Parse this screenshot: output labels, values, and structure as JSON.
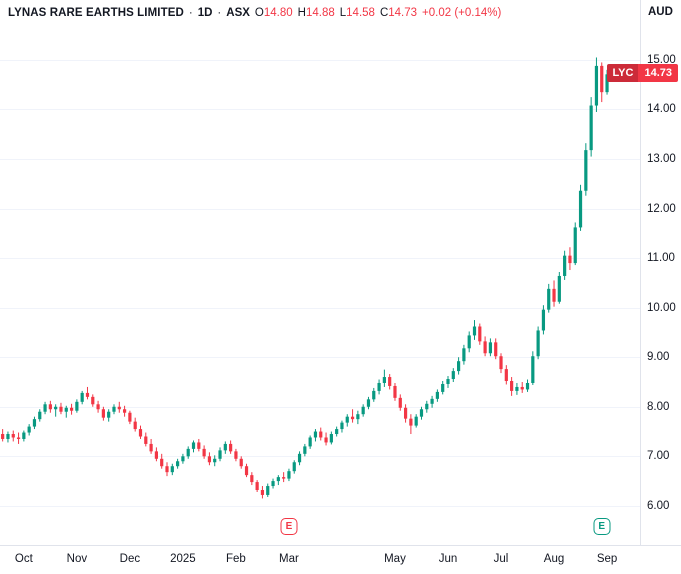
{
  "header": {
    "symbol_name": "LYNAS RARE EARTHS LIMITED",
    "separator": "·",
    "timeframe": "1D",
    "exchange": "ASX",
    "ohlc": {
      "open_label": "O",
      "open": "14.80",
      "high_label": "H",
      "high": "14.88",
      "low_label": "L",
      "low": "14.58",
      "close_label": "C",
      "close": "14.73",
      "change": "+0.02 (+0.14%)"
    }
  },
  "price_axis": {
    "currency": "AUD",
    "labels": [
      "15.00",
      "14.00",
      "13.00",
      "12.00",
      "11.00",
      "10.00",
      "9.00",
      "8.00",
      "7.00",
      "6.00"
    ],
    "values": [
      15,
      14,
      13,
      12,
      11,
      10,
      9,
      8,
      7,
      6
    ],
    "tag": {
      "symbol": "LYC",
      "price": "14.73"
    }
  },
  "time_axis": {
    "labels": [
      {
        "text": "Oct",
        "index": 4
      },
      {
        "text": "Nov",
        "index": 14
      },
      {
        "text": "Dec",
        "index": 24
      },
      {
        "text": "2025",
        "index": 34
      },
      {
        "text": "Feb",
        "index": 44
      },
      {
        "text": "Mar",
        "index": 54
      },
      {
        "text": "May",
        "index": 74
      },
      {
        "text": "Jun",
        "index": 84
      },
      {
        "text": "Jul",
        "index": 94
      },
      {
        "text": "Aug",
        "index": 104
      },
      {
        "text": "Sep",
        "index": 114
      }
    ]
  },
  "earnings_markers": [
    {
      "label": "E",
      "index": 54,
      "color": "#f23645"
    },
    {
      "label": "E",
      "index": 113,
      "color": "#089981"
    }
  ],
  "colors": {
    "up": "#089981",
    "down": "#f23645",
    "grid": "#f0f3fa",
    "axis_border": "#e0e3eb",
    "text": "#131722",
    "muted": "#787b86",
    "tag_bg": "#f23645",
    "tag_symbol_bg": "#cc2b39"
  },
  "chart_data": {
    "type": "candlestick",
    "title": "LYNAS RARE EARTHS LIMITED · 1D · ASX",
    "ylabel": "Price (AUD)",
    "ylim": [
      5.21,
      16.21
    ],
    "x_range": [
      "Sep 2024",
      "Sep 2025"
    ],
    "grid": "horizontal",
    "last": {
      "open": 14.8,
      "high": 14.88,
      "low": 14.58,
      "close": 14.73,
      "change": 0.02,
      "change_pct": 0.14
    },
    "candles": [
      [
        7.45,
        7.55,
        7.3,
        7.35
      ],
      [
        7.35,
        7.5,
        7.28,
        7.45
      ],
      [
        7.45,
        7.52,
        7.3,
        7.38
      ],
      [
        7.38,
        7.48,
        7.25,
        7.35
      ],
      [
        7.35,
        7.52,
        7.3,
        7.48
      ],
      [
        7.48,
        7.65,
        7.42,
        7.6
      ],
      [
        7.6,
        7.8,
        7.55,
        7.75
      ],
      [
        7.75,
        7.95,
        7.7,
        7.9
      ],
      [
        7.9,
        8.1,
        7.85,
        8.05
      ],
      [
        8.05,
        8.12,
        7.88,
        7.95
      ],
      [
        7.95,
        8.05,
        7.8,
        8.0
      ],
      [
        8.0,
        8.08,
        7.85,
        7.9
      ],
      [
        7.9,
        8.02,
        7.78,
        7.98
      ],
      [
        7.98,
        8.06,
        7.84,
        7.92
      ],
      [
        7.92,
        8.15,
        7.88,
        8.1
      ],
      [
        8.1,
        8.32,
        8.05,
        8.28
      ],
      [
        8.28,
        8.4,
        8.15,
        8.2
      ],
      [
        8.2,
        8.25,
        8.0,
        8.05
      ],
      [
        8.05,
        8.12,
        7.88,
        7.95
      ],
      [
        7.95,
        8.0,
        7.72,
        7.78
      ],
      [
        7.78,
        7.95,
        7.7,
        7.9
      ],
      [
        7.9,
        8.05,
        7.85,
        8.0
      ],
      [
        8.0,
        8.1,
        7.88,
        7.95
      ],
      [
        7.95,
        8.02,
        7.8,
        7.88
      ],
      [
        7.88,
        7.92,
        7.65,
        7.7
      ],
      [
        7.7,
        7.78,
        7.5,
        7.55
      ],
      [
        7.55,
        7.62,
        7.35,
        7.4
      ],
      [
        7.4,
        7.48,
        7.2,
        7.25
      ],
      [
        7.25,
        7.35,
        7.05,
        7.1
      ],
      [
        7.1,
        7.18,
        6.9,
        6.95
      ],
      [
        6.95,
        7.05,
        6.75,
        6.8
      ],
      [
        6.8,
        6.88,
        6.6,
        6.68
      ],
      [
        6.68,
        6.85,
        6.62,
        6.8
      ],
      [
        6.8,
        6.95,
        6.75,
        6.9
      ],
      [
        6.9,
        7.05,
        6.85,
        7.0
      ],
      [
        7.0,
        7.2,
        6.95,
        7.15
      ],
      [
        7.15,
        7.32,
        7.08,
        7.28
      ],
      [
        7.28,
        7.35,
        7.1,
        7.15
      ],
      [
        7.15,
        7.22,
        6.95,
        7.0
      ],
      [
        7.0,
        7.08,
        6.82,
        6.88
      ],
      [
        6.88,
        7.02,
        6.8,
        6.95
      ],
      [
        6.95,
        7.18,
        6.9,
        7.12
      ],
      [
        7.12,
        7.3,
        7.05,
        7.25
      ],
      [
        7.25,
        7.32,
        7.05,
        7.1
      ],
      [
        7.1,
        7.15,
        6.9,
        6.95
      ],
      [
        6.95,
        7.0,
        6.75,
        6.8
      ],
      [
        6.8,
        6.85,
        6.58,
        6.62
      ],
      [
        6.62,
        6.68,
        6.42,
        6.48
      ],
      [
        6.48,
        6.52,
        6.28,
        6.32
      ],
      [
        6.32,
        6.4,
        6.15,
        6.22
      ],
      [
        6.22,
        6.45,
        6.18,
        6.4
      ],
      [
        6.4,
        6.55,
        6.35,
        6.5
      ],
      [
        6.5,
        6.62,
        6.42,
        6.58
      ],
      [
        6.58,
        6.68,
        6.48,
        6.55
      ],
      [
        6.55,
        6.75,
        6.5,
        6.7
      ],
      [
        6.7,
        6.92,
        6.65,
        6.88
      ],
      [
        6.88,
        7.1,
        6.82,
        7.05
      ],
      [
        7.05,
        7.25,
        7.0,
        7.2
      ],
      [
        7.2,
        7.42,
        7.15,
        7.38
      ],
      [
        7.38,
        7.55,
        7.3,
        7.5
      ],
      [
        7.5,
        7.58,
        7.32,
        7.38
      ],
      [
        7.38,
        7.48,
        7.22,
        7.28
      ],
      [
        7.28,
        7.5,
        7.24,
        7.45
      ],
      [
        7.45,
        7.6,
        7.4,
        7.55
      ],
      [
        7.55,
        7.72,
        7.48,
        7.68
      ],
      [
        7.68,
        7.85,
        7.6,
        7.8
      ],
      [
        7.8,
        7.95,
        7.68,
        7.75
      ],
      [
        7.75,
        7.92,
        7.65,
        7.85
      ],
      [
        7.85,
        8.05,
        7.8,
        8.0
      ],
      [
        8.0,
        8.2,
        7.95,
        8.15
      ],
      [
        8.15,
        8.38,
        8.1,
        8.32
      ],
      [
        8.32,
        8.55,
        8.25,
        8.48
      ],
      [
        8.48,
        8.75,
        8.4,
        8.6
      ],
      [
        8.6,
        8.66,
        8.35,
        8.42
      ],
      [
        8.42,
        8.48,
        8.12,
        8.18
      ],
      [
        8.18,
        8.25,
        7.92,
        7.98
      ],
      [
        7.98,
        8.05,
        7.68,
        7.76
      ],
      [
        7.76,
        7.85,
        7.45,
        7.62
      ],
      [
        7.62,
        7.85,
        7.58,
        7.8
      ],
      [
        7.8,
        8.0,
        7.74,
        7.95
      ],
      [
        7.95,
        8.12,
        7.88,
        8.06
      ],
      [
        8.06,
        8.22,
        7.98,
        8.16
      ],
      [
        8.16,
        8.35,
        8.1,
        8.3
      ],
      [
        8.3,
        8.52,
        8.25,
        8.46
      ],
      [
        8.46,
        8.62,
        8.38,
        8.56
      ],
      [
        8.56,
        8.78,
        8.5,
        8.72
      ],
      [
        8.72,
        9.0,
        8.65,
        8.92
      ],
      [
        8.92,
        9.25,
        8.85,
        9.18
      ],
      [
        9.18,
        9.52,
        9.1,
        9.44
      ],
      [
        9.44,
        9.75,
        9.35,
        9.62
      ],
      [
        9.62,
        9.68,
        9.25,
        9.32
      ],
      [
        9.32,
        9.42,
        9.02,
        9.08
      ],
      [
        9.08,
        9.38,
        9.02,
        9.3
      ],
      [
        9.3,
        9.38,
        8.96,
        9.02
      ],
      [
        9.02,
        9.08,
        8.68,
        8.76
      ],
      [
        8.76,
        8.84,
        8.45,
        8.52
      ],
      [
        8.52,
        8.6,
        8.22,
        8.32
      ],
      [
        8.32,
        8.48,
        8.24,
        8.4
      ],
      [
        8.4,
        8.5,
        8.28,
        8.35
      ],
      [
        8.35,
        8.55,
        8.3,
        8.48
      ],
      [
        8.48,
        9.12,
        8.44,
        9.02
      ],
      [
        9.02,
        9.62,
        8.96,
        9.54
      ],
      [
        9.54,
        10.05,
        9.46,
        9.96
      ],
      [
        9.96,
        10.48,
        9.9,
        10.38
      ],
      [
        10.38,
        10.55,
        10.02,
        10.12
      ],
      [
        10.12,
        10.72,
        10.08,
        10.64
      ],
      [
        10.64,
        11.15,
        10.56,
        11.05
      ],
      [
        11.05,
        11.22,
        10.76,
        10.9
      ],
      [
        10.9,
        11.72,
        10.86,
        11.62
      ],
      [
        11.62,
        12.48,
        11.55,
        12.36
      ],
      [
        12.36,
        13.32,
        12.26,
        13.18
      ],
      [
        13.18,
        14.25,
        13.05,
        14.08
      ],
      [
        14.08,
        15.05,
        13.95,
        14.88
      ],
      [
        14.88,
        14.95,
        14.15,
        14.35
      ],
      [
        14.35,
        14.8,
        14.3,
        14.71
      ],
      [
        14.8,
        14.88,
        14.58,
        14.73
      ]
    ]
  }
}
